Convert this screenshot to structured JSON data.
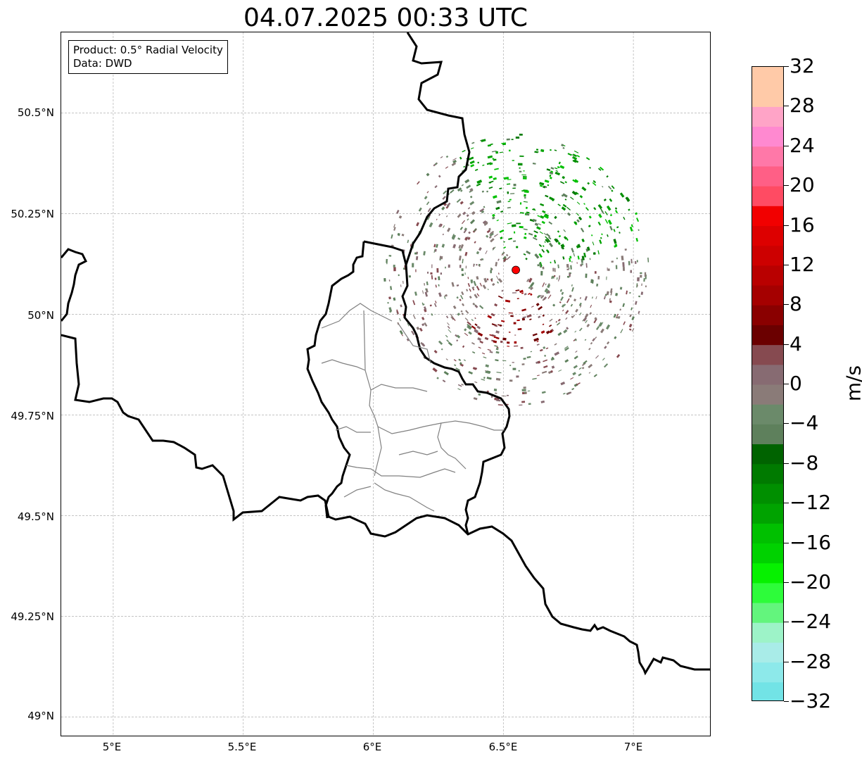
{
  "title": "04.07.2025 00:33 UTC",
  "info": {
    "product": "Product: 0.5° Radial Velocity",
    "source": "Data: DWD"
  },
  "axes": {
    "lon_range": [
      4.8,
      7.3
    ],
    "lat_range": [
      48.95,
      50.7
    ],
    "x_ticks": [
      "5°E",
      "5.5°E",
      "6°E",
      "6.5°E",
      "7°E"
    ],
    "x_tick_values": [
      5.0,
      5.5,
      6.0,
      6.5,
      7.0
    ],
    "y_ticks": [
      "50.5°N",
      "50.25°N",
      "50°N",
      "49.75°N",
      "49.5°N",
      "49.25°N",
      "49°N"
    ],
    "y_tick_values": [
      50.5,
      50.25,
      50.0,
      49.75,
      49.5,
      49.25,
      49.0
    ],
    "grid": true
  },
  "radar": {
    "site_lon": 6.548,
    "site_lat": 50.11,
    "marker_color": "#ff0000"
  },
  "colorbar": {
    "label": "m/s",
    "min": -32,
    "max": 32,
    "step": 2,
    "tick_labels": [
      "32",
      "28",
      "24",
      "20",
      "16",
      "12",
      "8",
      "4",
      "0",
      "−4",
      "−8",
      "−12",
      "−16",
      "−20",
      "−24",
      "−28",
      "−32"
    ],
    "colors_bottom_to_top": [
      "#72e3e6",
      "#8de9ea",
      "#a9ece8",
      "#9df3c8",
      "#63f57d",
      "#2dfc3a",
      "#06f100",
      "#00d200",
      "#00c000",
      "#00a300",
      "#008f00",
      "#007a00",
      "#006300",
      "#5e805c",
      "#6b8a6a",
      "#8a7b78",
      "#876b72",
      "#864a50",
      "#6b0000",
      "#8a0000",
      "#a50000",
      "#b90000",
      "#cd0000",
      "#dd0000",
      "#f20000",
      "#ff4b63",
      "#ff5f86",
      "#ff78a8",
      "#ff89d0",
      "#ffa4c7",
      "#ffcaa8",
      "#ffcaa8"
    ]
  }
}
